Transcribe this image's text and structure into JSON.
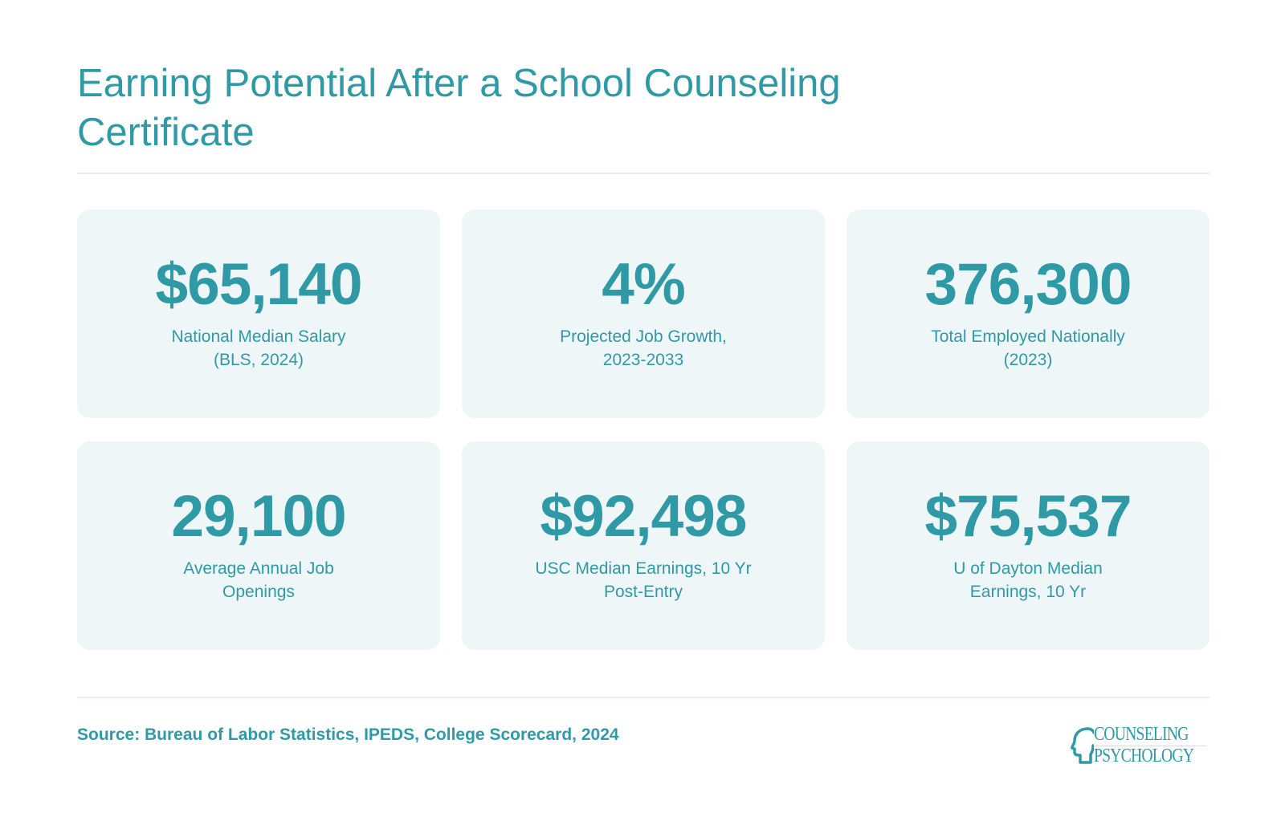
{
  "title": "Earning Potential After a School Counseling Certificate",
  "cards": [
    {
      "value": "$65,140",
      "label_line1": "National Median Salary",
      "label_line2": "(BLS, 2024)"
    },
    {
      "value": "4%",
      "label_line1": "Projected Job Growth,",
      "label_line2": "2023-2033"
    },
    {
      "value": "376,300",
      "label_line1": "Total Employed Nationally",
      "label_line2": "(2023)"
    },
    {
      "value": "29,100",
      "label_line1": "Average Annual Job",
      "label_line2": "Openings"
    },
    {
      "value": "$92,498",
      "label_line1": "USC Median Earnings, 10 Yr",
      "label_line2": "Post-Entry"
    },
    {
      "value": "$75,537",
      "label_line1": "U of Dayton Median",
      "label_line2": "Earnings, 10 Yr"
    }
  ],
  "source": "Source: Bureau of Labor Statistics, IPEDS, College Scorecard, 2024",
  "logo": {
    "line1": "COUNSELING",
    "line2": "PSYCHOLOGY",
    "icon": "head-profile-icon"
  },
  "colors": {
    "accent": "#2f9aa6",
    "card_bg": "#eef6f8"
  }
}
